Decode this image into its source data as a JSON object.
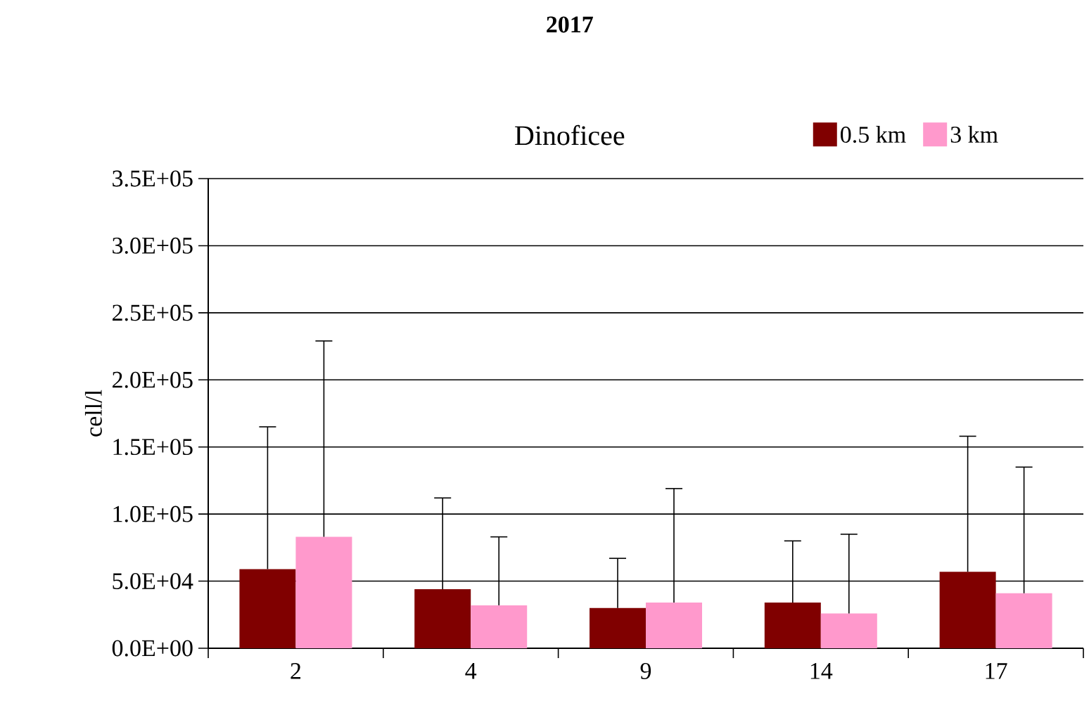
{
  "chart_data": {
    "type": "bar",
    "title": "2017",
    "subtitle": "Dinoficee",
    "ylabel": "cell/l",
    "categories": [
      "2",
      "4",
      "9",
      "14",
      "17"
    ],
    "series": [
      {
        "name": "0.5 km",
        "color": "#800000",
        "values": [
          59000,
          44000,
          30000,
          34000,
          57000
        ],
        "errors": [
          [
            59000,
            165000
          ],
          [
            44000,
            112000
          ],
          [
            30000,
            67000
          ],
          [
            34000,
            80000
          ],
          [
            57000,
            158000
          ]
        ]
      },
      {
        "name": "3 km",
        "color": "#ff99cc",
        "values": [
          83000,
          32000,
          34000,
          26000,
          41000
        ],
        "errors": [
          [
            83000,
            229000
          ],
          [
            32000,
            83000
          ],
          [
            34000,
            119000
          ],
          [
            26000,
            85000
          ],
          [
            41000,
            135000
          ]
        ]
      }
    ],
    "ylim": [
      0,
      350000
    ],
    "yticks": [
      {
        "value": 0,
        "label": "0.0E+00"
      },
      {
        "value": 50000,
        "label": "5.0E+04"
      },
      {
        "value": 100000,
        "label": "1.0E+05"
      },
      {
        "value": 150000,
        "label": "1.5E+05"
      },
      {
        "value": 200000,
        "label": "2.0E+05"
      },
      {
        "value": 250000,
        "label": "2.5E+05"
      },
      {
        "value": 300000,
        "label": "3.0E+05"
      },
      {
        "value": 350000,
        "label": "3.5E+05"
      }
    ],
    "grid": "y",
    "legend": "top right"
  }
}
